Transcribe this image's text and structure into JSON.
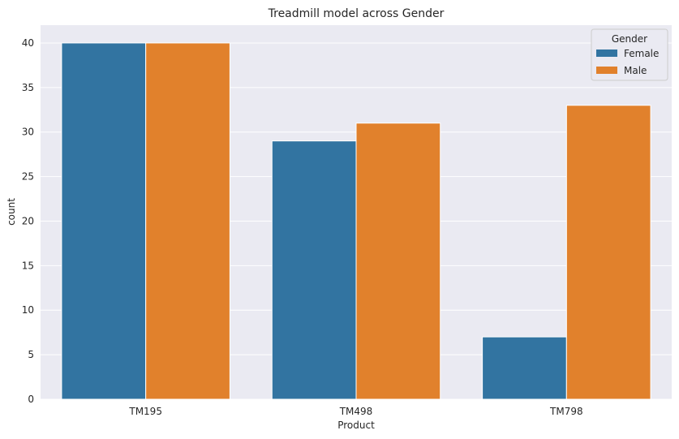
{
  "chart_data": {
    "type": "bar",
    "title": "Treadmill model across Gender",
    "xlabel": "Product",
    "ylabel": "count",
    "categories": [
      "TM195",
      "TM498",
      "TM798"
    ],
    "series": [
      {
        "name": "Female",
        "values": [
          40,
          29,
          7
        ],
        "color": "#3274a1"
      },
      {
        "name": "Male",
        "values": [
          40,
          31,
          33
        ],
        "color": "#e1812c"
      }
    ],
    "ylim": [
      0,
      42
    ],
    "yticks": [
      0,
      5,
      10,
      15,
      20,
      25,
      30,
      35,
      40
    ],
    "grid": true,
    "legend": {
      "title": "Gender",
      "placement": "top-right"
    },
    "colors": {
      "plot_background": "#eaeaf2",
      "grid": "#ffffff"
    }
  }
}
